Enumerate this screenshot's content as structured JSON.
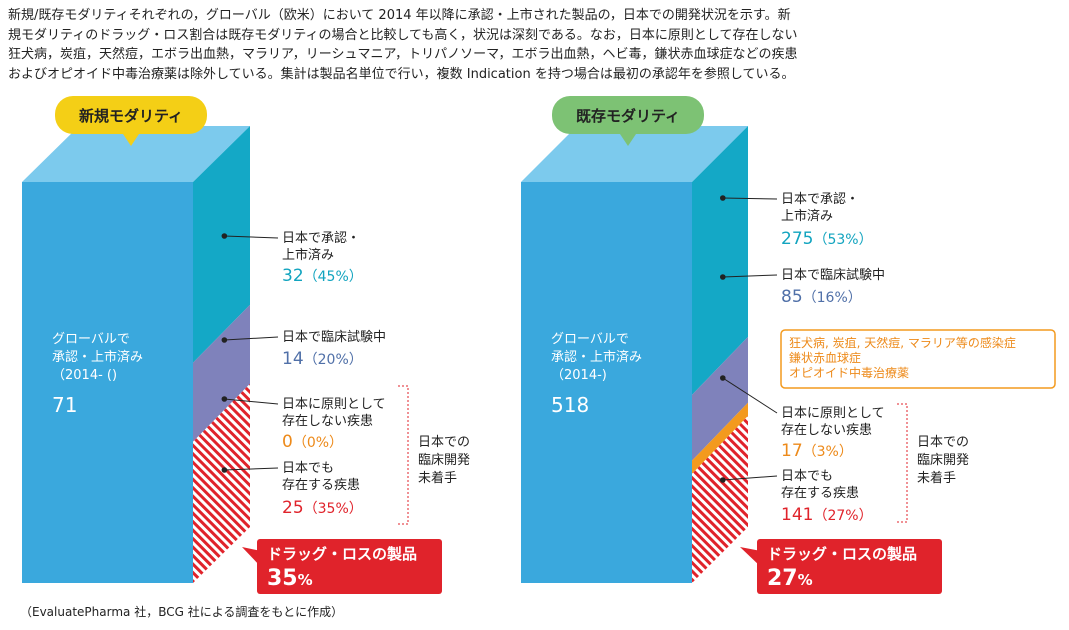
{
  "caption_lines": [
    "新規/既存モダリティそれぞれの，グローバル（欧米）において 2014 年以降に承認・上市された製品の，日本での開発状況を示す。新",
    "規モダリティのドラッグ・ロス割合は既存モダリティの場合と比較しても高く，状況は深刻である。なお，日本に原則として存在しない",
    "狂犬病，炭疽，天然痘，エボラ出血熱，マラリア，リーシュマニア，トリパノソーマ，エボラ出血熱，ヘビ毒，鎌状赤血球症などの疾患",
    "およびオピオイド中毒治療薬は除外している。集計は製品名単位で行い，複数 Indication を持つ場合は最初の承認年を参照している。"
  ],
  "source": "（EvaluatePharma 社，BCG 社による調査をもとに作成）",
  "colors": {
    "front": "#3aa8dd",
    "side_approved": "#14a8c6",
    "top_face": "#7ccaed",
    "side_trial": "#7f82bb",
    "side_none": "#f39a1e",
    "side_exists": "#e0232b",
    "badge_new": "#f4cf16",
    "badge_existing": "#7dc274",
    "label_teal": "#12a4bf",
    "label_blue": "#5070a8",
    "label_orange": "#ed8a1a",
    "label_red": "#e0232b"
  },
  "chart_data": [
    {
      "type": "stacked-3d-bar",
      "badge": "新規モダリティ",
      "global": {
        "label_lines": [
          "グローバルで",
          "承認・上市済み",
          "（2014- ()"
        ],
        "value": 71
      },
      "segments": [
        {
          "label_lines": [
            "日本で承認・",
            "上市済み"
          ],
          "count": 32,
          "pct": "（45%）",
          "color_key": "label_teal"
        },
        {
          "label_lines": [
            "日本で臨床試験中"
          ],
          "count": 14,
          "pct": "（20%）",
          "color_key": "label_blue"
        },
        {
          "label_lines": [
            "日本に原則として",
            "存在しない疾患"
          ],
          "count": 0,
          "pct": "（0%）",
          "color_key": "label_orange"
        },
        {
          "label_lines": [
            "日本でも",
            "存在する疾患"
          ],
          "count": 25,
          "pct": "（35%）",
          "color_key": "label_red"
        }
      ],
      "not_started_lines": [
        "日本での",
        "臨床開発",
        "未着手"
      ],
      "drug_loss": {
        "label": "ドラッグ・ロスの製品",
        "value": "35",
        "unit": "%"
      }
    },
    {
      "type": "stacked-3d-bar",
      "badge": "既存モダリティ",
      "global": {
        "label_lines": [
          "グローバルで",
          "承認・上市済み",
          "（2014-)"
        ],
        "value": 518
      },
      "segments": [
        {
          "label_lines": [
            "日本で承認・",
            "上市済み"
          ],
          "count": 275,
          "pct": "（53%）",
          "color_key": "label_teal"
        },
        {
          "label_lines": [
            "日本で臨床試験中"
          ],
          "count": 85,
          "pct": "（16%）",
          "color_key": "label_blue"
        },
        {
          "label_lines": [
            "日本に原則として",
            "存在しない疾患"
          ],
          "count": 17,
          "pct": "（3%）",
          "color_key": "label_orange"
        },
        {
          "label_lines": [
            "日本でも",
            "存在する疾患"
          ],
          "count": 141,
          "pct": "（27%）",
          "color_key": "label_red"
        }
      ],
      "not_started_lines": [
        "日本での",
        "臨床開発",
        "未着手"
      ],
      "note_lines": [
        "狂犬病, 炭疽, 天然痘, マラリア等の感染症",
        "鎌状赤血球症",
        "オピオイド中毒治療薬"
      ],
      "drug_loss": {
        "label": "ドラッグ・ロスの製品",
        "value": "27",
        "unit": "%"
      }
    }
  ]
}
